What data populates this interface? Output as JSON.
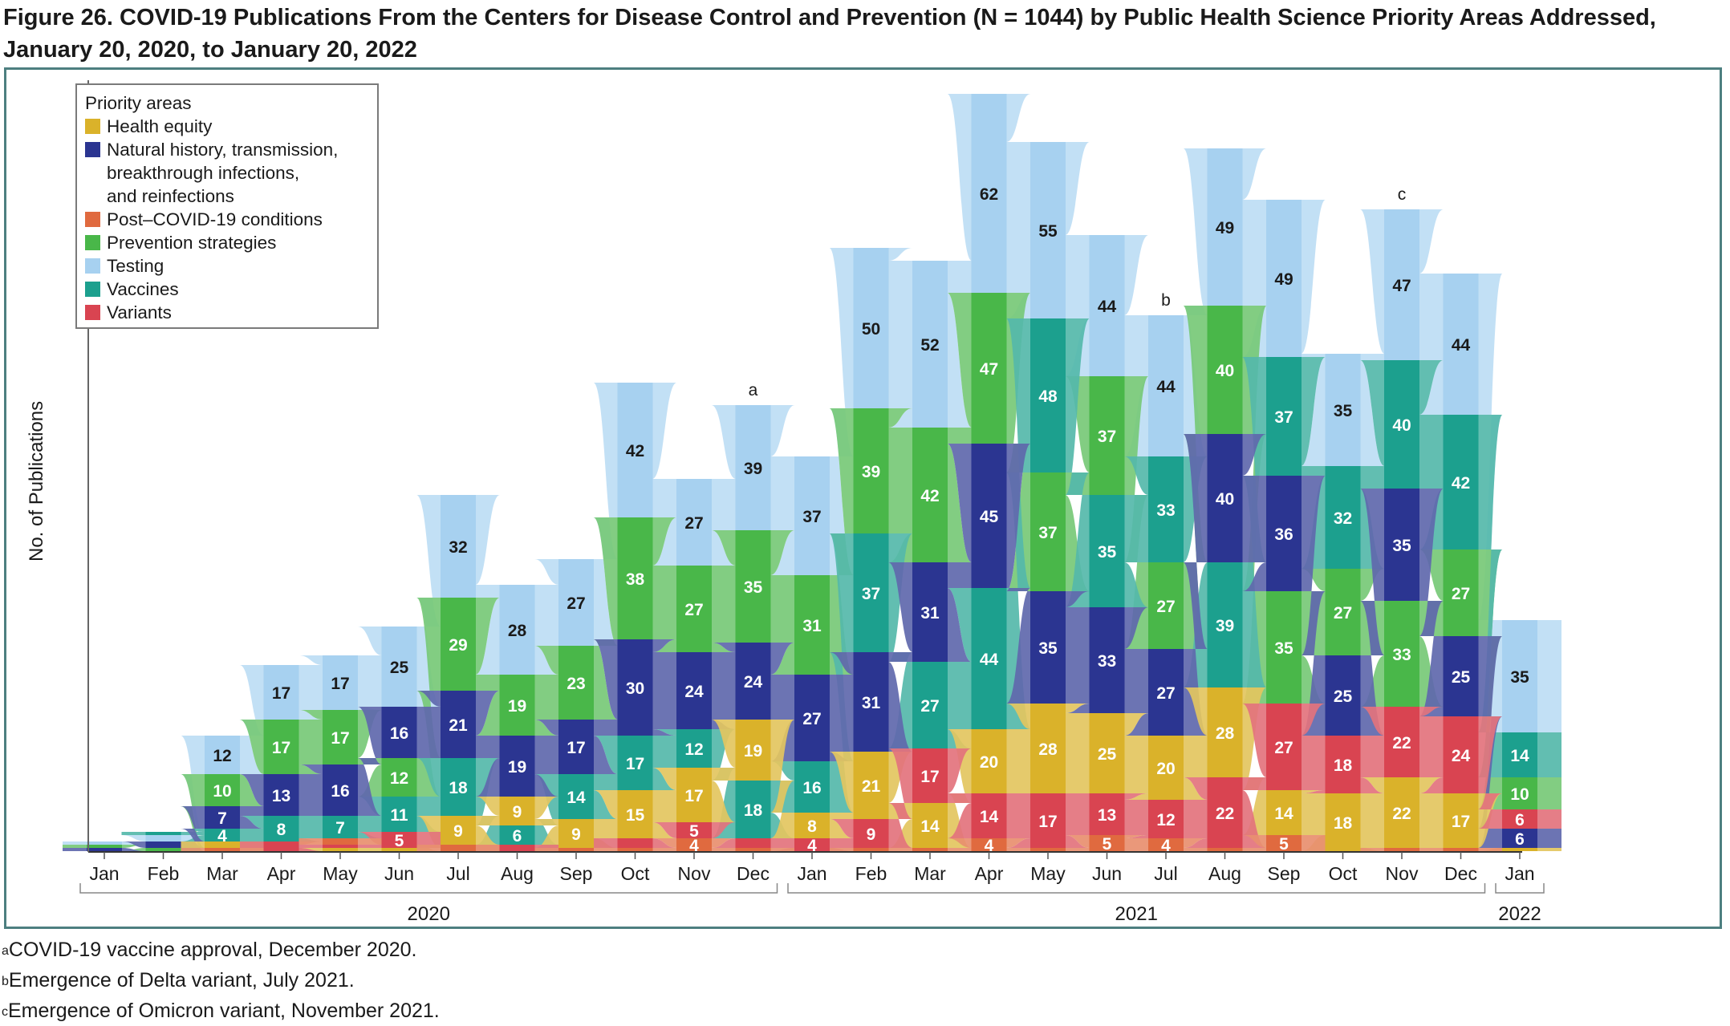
{
  "title": "Figure 26. COVID-19 Publications From the Centers for Disease Control and Prevention (N = 1044) by Public Health Science Priority Areas Addressed, January 20, 2020, to January 20, 2022",
  "footnotes": [
    {
      "mark": "a",
      "text": "COVID-19 vaccine approval, December 2020."
    },
    {
      "mark": "b",
      "text": "Emergence of Delta variant, July 2021."
    },
    {
      "mark": "c",
      "text": "Emergence of Omicron variant, November 2021."
    }
  ],
  "legend": {
    "title": "Priority areas",
    "items": [
      {
        "key": "equity",
        "label": "Health equity",
        "color": "#dab22a"
      },
      {
        "key": "natural",
        "label": "Natural history, transmission,\nbreakthrough infections,\nand reinfections",
        "color": "#2b3591"
      },
      {
        "key": "post",
        "label": "Post–COVID-19 conditions",
        "color": "#e06a3f"
      },
      {
        "key": "prevention",
        "label": "Prevention strategies",
        "color": "#49b749"
      },
      {
        "key": "testing",
        "label": "Testing",
        "color": "#a7d1f0"
      },
      {
        "key": "vaccines",
        "label": "Vaccines",
        "color": "#1ca08e"
      },
      {
        "key": "variants",
        "label": "Variants",
        "color": "#d94451"
      }
    ]
  },
  "chart_data": {
    "type": "bar",
    "subtype": "stacked ranked bars with ribbons",
    "title": "COVID-19 Publications From the Centers for Disease Control and Prevention (N = 1044) by Public Health Science Priority Areas Addressed, January 20, 2020, to January 20, 2022",
    "ylabel": "No. of Publications",
    "xlabel": "",
    "legend_position": "top-left",
    "grid": false,
    "year_groups": [
      {
        "label": "2020",
        "months": [
          0,
          11
        ]
      },
      {
        "label": "2021",
        "months": [
          12,
          23
        ]
      },
      {
        "label": "2022",
        "months": [
          24,
          24
        ]
      }
    ],
    "categories": [
      "Jan",
      "Feb",
      "Mar",
      "Apr",
      "May",
      "Jun",
      "Jul",
      "Aug",
      "Sep",
      "Oct",
      "Nov",
      "Dec",
      "Jan",
      "Feb",
      "Mar",
      "Apr",
      "May",
      "Jun",
      "Jul",
      "Aug",
      "Sep",
      "Oct",
      "Nov",
      "Dec",
      "Jan"
    ],
    "annotations": [
      {
        "month_index": 11,
        "mark": "a"
      },
      {
        "month_index": 18,
        "mark": "b"
      },
      {
        "month_index": 22,
        "mark": "c"
      }
    ],
    "stacks": [
      [
        {
          "k": "natural",
          "v": 1
        },
        {
          "k": "prevention",
          "v": 1
        },
        {
          "k": "testing",
          "v": 1
        }
      ],
      [
        {
          "k": "prevention",
          "v": 1
        },
        {
          "k": "natural",
          "v": 2
        },
        {
          "k": "testing",
          "v": 2
        },
        {
          "k": "vaccines",
          "v": 1
        }
      ],
      [
        {
          "k": "post",
          "v": 1
        },
        {
          "k": "equity",
          "v": 2
        },
        {
          "k": "vaccines",
          "v": 4
        },
        {
          "k": "natural",
          "v": 7
        },
        {
          "k": "prevention",
          "v": 10
        },
        {
          "k": "testing",
          "v": 12
        }
      ],
      [
        {
          "k": "variants",
          "v": 3
        },
        {
          "k": "vaccines",
          "v": 8
        },
        {
          "k": "natural",
          "v": 13
        },
        {
          "k": "prevention",
          "v": 17
        },
        {
          "k": "testing",
          "v": 17
        }
      ],
      [
        {
          "k": "equity",
          "v": 1
        },
        {
          "k": "variants",
          "v": 1
        },
        {
          "k": "post",
          "v": 2
        },
        {
          "k": "vaccines",
          "v": 7
        },
        {
          "k": "natural",
          "v": 16
        },
        {
          "k": "prevention",
          "v": 17
        },
        {
          "k": "testing",
          "v": 17
        }
      ],
      [
        {
          "k": "equity",
          "v": 1
        },
        {
          "k": "variants",
          "v": 5
        },
        {
          "k": "vaccines",
          "v": 11
        },
        {
          "k": "prevention",
          "v": 12
        },
        {
          "k": "natural",
          "v": 16
        },
        {
          "k": "testing",
          "v": 25
        }
      ],
      [
        {
          "k": "post",
          "v": 2
        },
        {
          "k": "equity",
          "v": 9
        },
        {
          "k": "vaccines",
          "v": 18
        },
        {
          "k": "natural",
          "v": 21
        },
        {
          "k": "prevention",
          "v": 29
        },
        {
          "k": "testing",
          "v": 32
        }
      ],
      [
        {
          "k": "variants",
          "v": 2
        },
        {
          "k": "vaccines",
          "v": 6
        },
        {
          "k": "equity",
          "v": 9
        },
        {
          "k": "natural",
          "v": 19
        },
        {
          "k": "prevention",
          "v": 19
        },
        {
          "k": "testing",
          "v": 28
        }
      ],
      [
        {
          "k": "post",
          "v": 1
        },
        {
          "k": "equity",
          "v": 9
        },
        {
          "k": "vaccines",
          "v": 14
        },
        {
          "k": "natural",
          "v": 17
        },
        {
          "k": "prevention",
          "v": 23
        },
        {
          "k": "testing",
          "v": 27
        }
      ],
      [
        {
          "k": "post",
          "v": 1
        },
        {
          "k": "variants",
          "v": 3
        },
        {
          "k": "equity",
          "v": 15
        },
        {
          "k": "vaccines",
          "v": 17
        },
        {
          "k": "natural",
          "v": 30
        },
        {
          "k": "prevention",
          "v": 38
        },
        {
          "k": "testing",
          "v": 42
        }
      ],
      [
        {
          "k": "post",
          "v": 4
        },
        {
          "k": "variants",
          "v": 5
        },
        {
          "k": "equity",
          "v": 17
        },
        {
          "k": "vaccines",
          "v": 12
        },
        {
          "k": "natural",
          "v": 24
        },
        {
          "k": "prevention",
          "v": 27
        },
        {
          "k": "testing",
          "v": 27
        }
      ],
      [
        {
          "k": "post",
          "v": 1
        },
        {
          "k": "variants",
          "v": 3
        },
        {
          "k": "vaccines",
          "v": 18
        },
        {
          "k": "equity",
          "v": 19
        },
        {
          "k": "natural",
          "v": 24
        },
        {
          "k": "prevention",
          "v": 35
        },
        {
          "k": "testing",
          "v": 39
        }
      ],
      [
        {
          "k": "variants",
          "v": 4
        },
        {
          "k": "equity",
          "v": 8
        },
        {
          "k": "vaccines",
          "v": 16
        },
        {
          "k": "natural",
          "v": 27
        },
        {
          "k": "prevention",
          "v": 31
        },
        {
          "k": "testing",
          "v": 37
        }
      ],
      [
        {
          "k": "post",
          "v": 1
        },
        {
          "k": "variants",
          "v": 9
        },
        {
          "k": "equity",
          "v": 21
        },
        {
          "k": "natural",
          "v": 31
        },
        {
          "k": "vaccines",
          "v": 37
        },
        {
          "k": "prevention",
          "v": 39
        },
        {
          "k": "testing",
          "v": 50
        }
      ],
      [
        {
          "k": "post",
          "v": 1
        },
        {
          "k": "equity",
          "v": 14
        },
        {
          "k": "variants",
          "v": 17
        },
        {
          "k": "vaccines",
          "v": 27
        },
        {
          "k": "natural",
          "v": 31
        },
        {
          "k": "prevention",
          "v": 42
        },
        {
          "k": "testing",
          "v": 52
        }
      ],
      [
        {
          "k": "post",
          "v": 4
        },
        {
          "k": "variants",
          "v": 14
        },
        {
          "k": "equity",
          "v": 20
        },
        {
          "k": "vaccines",
          "v": 44
        },
        {
          "k": "natural",
          "v": 45
        },
        {
          "k": "prevention",
          "v": 47
        },
        {
          "k": "testing",
          "v": 62
        }
      ],
      [
        {
          "k": "post",
          "v": 1
        },
        {
          "k": "variants",
          "v": 17
        },
        {
          "k": "equity",
          "v": 28
        },
        {
          "k": "natural",
          "v": 35
        },
        {
          "k": "prevention",
          "v": 37
        },
        {
          "k": "vaccines",
          "v": 48
        },
        {
          "k": "testing",
          "v": 55
        }
      ],
      [
        {
          "k": "post",
          "v": 5
        },
        {
          "k": "variants",
          "v": 13
        },
        {
          "k": "equity",
          "v": 25
        },
        {
          "k": "natural",
          "v": 33
        },
        {
          "k": "vaccines",
          "v": 35
        },
        {
          "k": "prevention",
          "v": 37
        },
        {
          "k": "testing",
          "v": 44
        }
      ],
      [
        {
          "k": "post",
          "v": 4
        },
        {
          "k": "variants",
          "v": 12
        },
        {
          "k": "equity",
          "v": 20
        },
        {
          "k": "natural",
          "v": 27
        },
        {
          "k": "prevention",
          "v": 27
        },
        {
          "k": "vaccines",
          "v": 33
        },
        {
          "k": "testing",
          "v": 44
        }
      ],
      [
        {
          "k": "post",
          "v": 1
        },
        {
          "k": "variants",
          "v": 22
        },
        {
          "k": "equity",
          "v": 28
        },
        {
          "k": "vaccines",
          "v": 39
        },
        {
          "k": "natural",
          "v": 40
        },
        {
          "k": "prevention",
          "v": 40
        },
        {
          "k": "testing",
          "v": 49
        }
      ],
      [
        {
          "k": "post",
          "v": 5
        },
        {
          "k": "equity",
          "v": 14
        },
        {
          "k": "variants",
          "v": 27
        },
        {
          "k": "prevention",
          "v": 35
        },
        {
          "k": "natural",
          "v": 36
        },
        {
          "k": "vaccines",
          "v": 37
        },
        {
          "k": "testing",
          "v": 49
        }
      ],
      [
        {
          "k": "equity",
          "v": 18
        },
        {
          "k": "variants",
          "v": 18
        },
        {
          "k": "natural",
          "v": 25
        },
        {
          "k": "prevention",
          "v": 27
        },
        {
          "k": "vaccines",
          "v": 32
        },
        {
          "k": "testing",
          "v": 35
        }
      ],
      [
        {
          "k": "post",
          "v": 1
        },
        {
          "k": "equity",
          "v": 22
        },
        {
          "k": "variants",
          "v": 22
        },
        {
          "k": "prevention",
          "v": 33
        },
        {
          "k": "natural",
          "v": 35
        },
        {
          "k": "vaccines",
          "v": 40
        },
        {
          "k": "testing",
          "v": 47
        }
      ],
      [
        {
          "k": "post",
          "v": 1
        },
        {
          "k": "equity",
          "v": 17
        },
        {
          "k": "variants",
          "v": 24
        },
        {
          "k": "natural",
          "v": 25
        },
        {
          "k": "prevention",
          "v": 27
        },
        {
          "k": "vaccines",
          "v": 42
        },
        {
          "k": "testing",
          "v": 44
        }
      ],
      [
        {
          "k": "equity",
          "v": 1
        },
        {
          "k": "natural",
          "v": 6
        },
        {
          "k": "variants",
          "v": 6
        },
        {
          "k": "prevention",
          "v": 10
        },
        {
          "k": "vaccines",
          "v": 14
        },
        {
          "k": "testing",
          "v": 35
        }
      ]
    ],
    "labeled_min": 4
  }
}
